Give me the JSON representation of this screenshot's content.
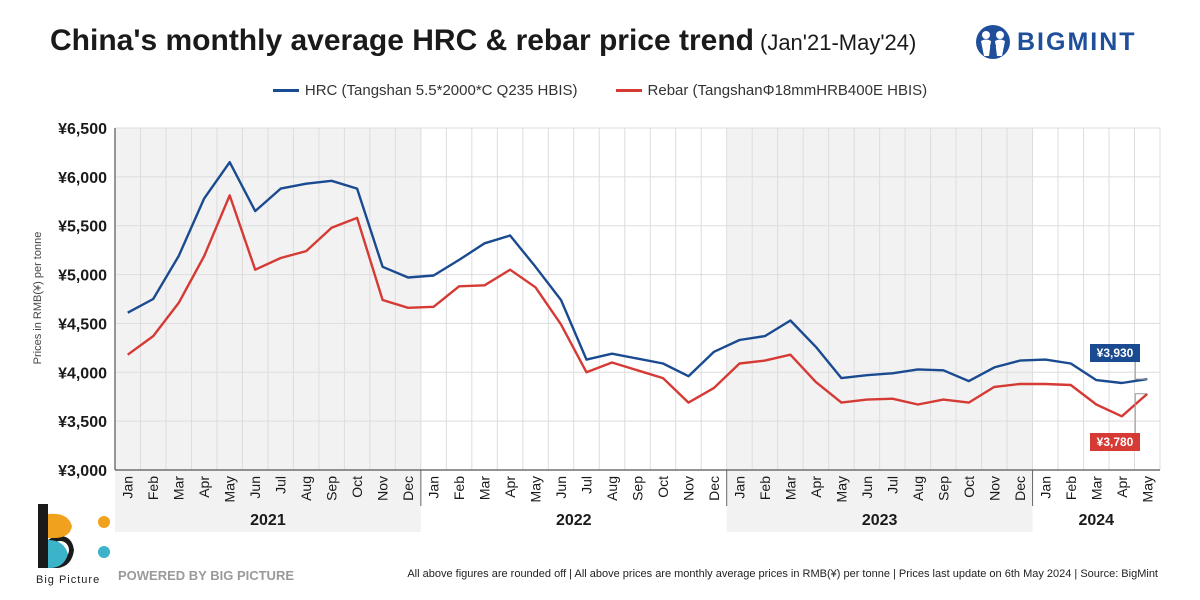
{
  "header": {
    "title": "China's monthly average HRC & rebar price trend",
    "subtitle": "(Jan'21-May'24)",
    "brand": "BIGMINT"
  },
  "footer": {
    "logo_caption": "Big Picture",
    "powered_by": "POWERED BY BIG PICTURE",
    "note": "All above figures are rounded off | All above prices are monthly average prices in RMB(¥) per tonne | Prices last update on 6th May 2024 | Source: BigMint"
  },
  "colors": {
    "hrc": "#1a4a8f",
    "rebar": "#d63a35",
    "grid": "#dddddd",
    "shade": "#f2f2f2"
  },
  "chart_data": {
    "type": "line",
    "title": "China's monthly average HRC & rebar price trend (Jan'21-May'24)",
    "ylabel": "Prices in RMB(¥) per tonne",
    "xlabel": "",
    "ylim": [
      3000,
      6500
    ],
    "yticks": [
      {
        "value": 3000,
        "label": "¥3,000"
      },
      {
        "value": 3500,
        "label": "¥3,500"
      },
      {
        "value": 4000,
        "label": "¥4,000"
      },
      {
        "value": 4500,
        "label": "¥4,500"
      },
      {
        "value": 5000,
        "label": "¥5,000"
      },
      {
        "value": 5500,
        "label": "¥5,500"
      },
      {
        "value": 6000,
        "label": "¥6,000"
      },
      {
        "value": 6500,
        "label": "¥6,500"
      }
    ],
    "grid": true,
    "legend_position": "top-center",
    "categories": [
      "Jan",
      "Feb",
      "Mar",
      "Apr",
      "May",
      "Jun",
      "Jul",
      "Aug",
      "Sep",
      "Oct",
      "Nov",
      "Dec",
      "Jan",
      "Feb",
      "Mar",
      "Apr",
      "May",
      "Jun",
      "Jul",
      "Aug",
      "Sep",
      "Oct",
      "Nov",
      "Dec",
      "Jan",
      "Feb",
      "Mar",
      "Apr",
      "May",
      "Jun",
      "Jul",
      "Aug",
      "Sep",
      "Oct",
      "Nov",
      "Dec",
      "Jan",
      "Feb",
      "Mar",
      "Apr",
      "May"
    ],
    "years": [
      {
        "label": "2021",
        "start": 0,
        "count": 12,
        "shaded": true
      },
      {
        "label": "2022",
        "start": 12,
        "count": 12,
        "shaded": false
      },
      {
        "label": "2023",
        "start": 24,
        "count": 12,
        "shaded": true
      },
      {
        "label": "2024",
        "start": 36,
        "count": 5,
        "shaded": false
      }
    ],
    "series": [
      {
        "name": "HRC (Tangshan 5.5*2000*C Q235 HBIS)",
        "key": "hrc",
        "values": [
          4610,
          4750,
          5190,
          5780,
          6150,
          5650,
          5880,
          5930,
          5960,
          5880,
          5080,
          4970,
          4990,
          5150,
          5320,
          5400,
          5080,
          4740,
          4130,
          4190,
          4140,
          4090,
          3960,
          4210,
          4330,
          4370,
          4530,
          4260,
          3940,
          3970,
          3990,
          4030,
          4020,
          3910,
          4050,
          4120,
          4130,
          4090,
          3920,
          3890,
          3930
        ],
        "end_label": "¥3,930"
      },
      {
        "name": "Rebar (TangshanΦ18mmHRB400E HBIS)",
        "key": "rebar",
        "values": [
          4180,
          4370,
          4710,
          5190,
          5810,
          5050,
          5170,
          5240,
          5480,
          5580,
          4740,
          4660,
          4670,
          4880,
          4890,
          5050,
          4870,
          4490,
          4000,
          4100,
          4020,
          3940,
          3690,
          3840,
          4090,
          4120,
          4180,
          3900,
          3690,
          3720,
          3730,
          3670,
          3720,
          3690,
          3850,
          3880,
          3880,
          3870,
          3670,
          3550,
          3780
        ],
        "end_label": "¥3,780"
      }
    ]
  }
}
